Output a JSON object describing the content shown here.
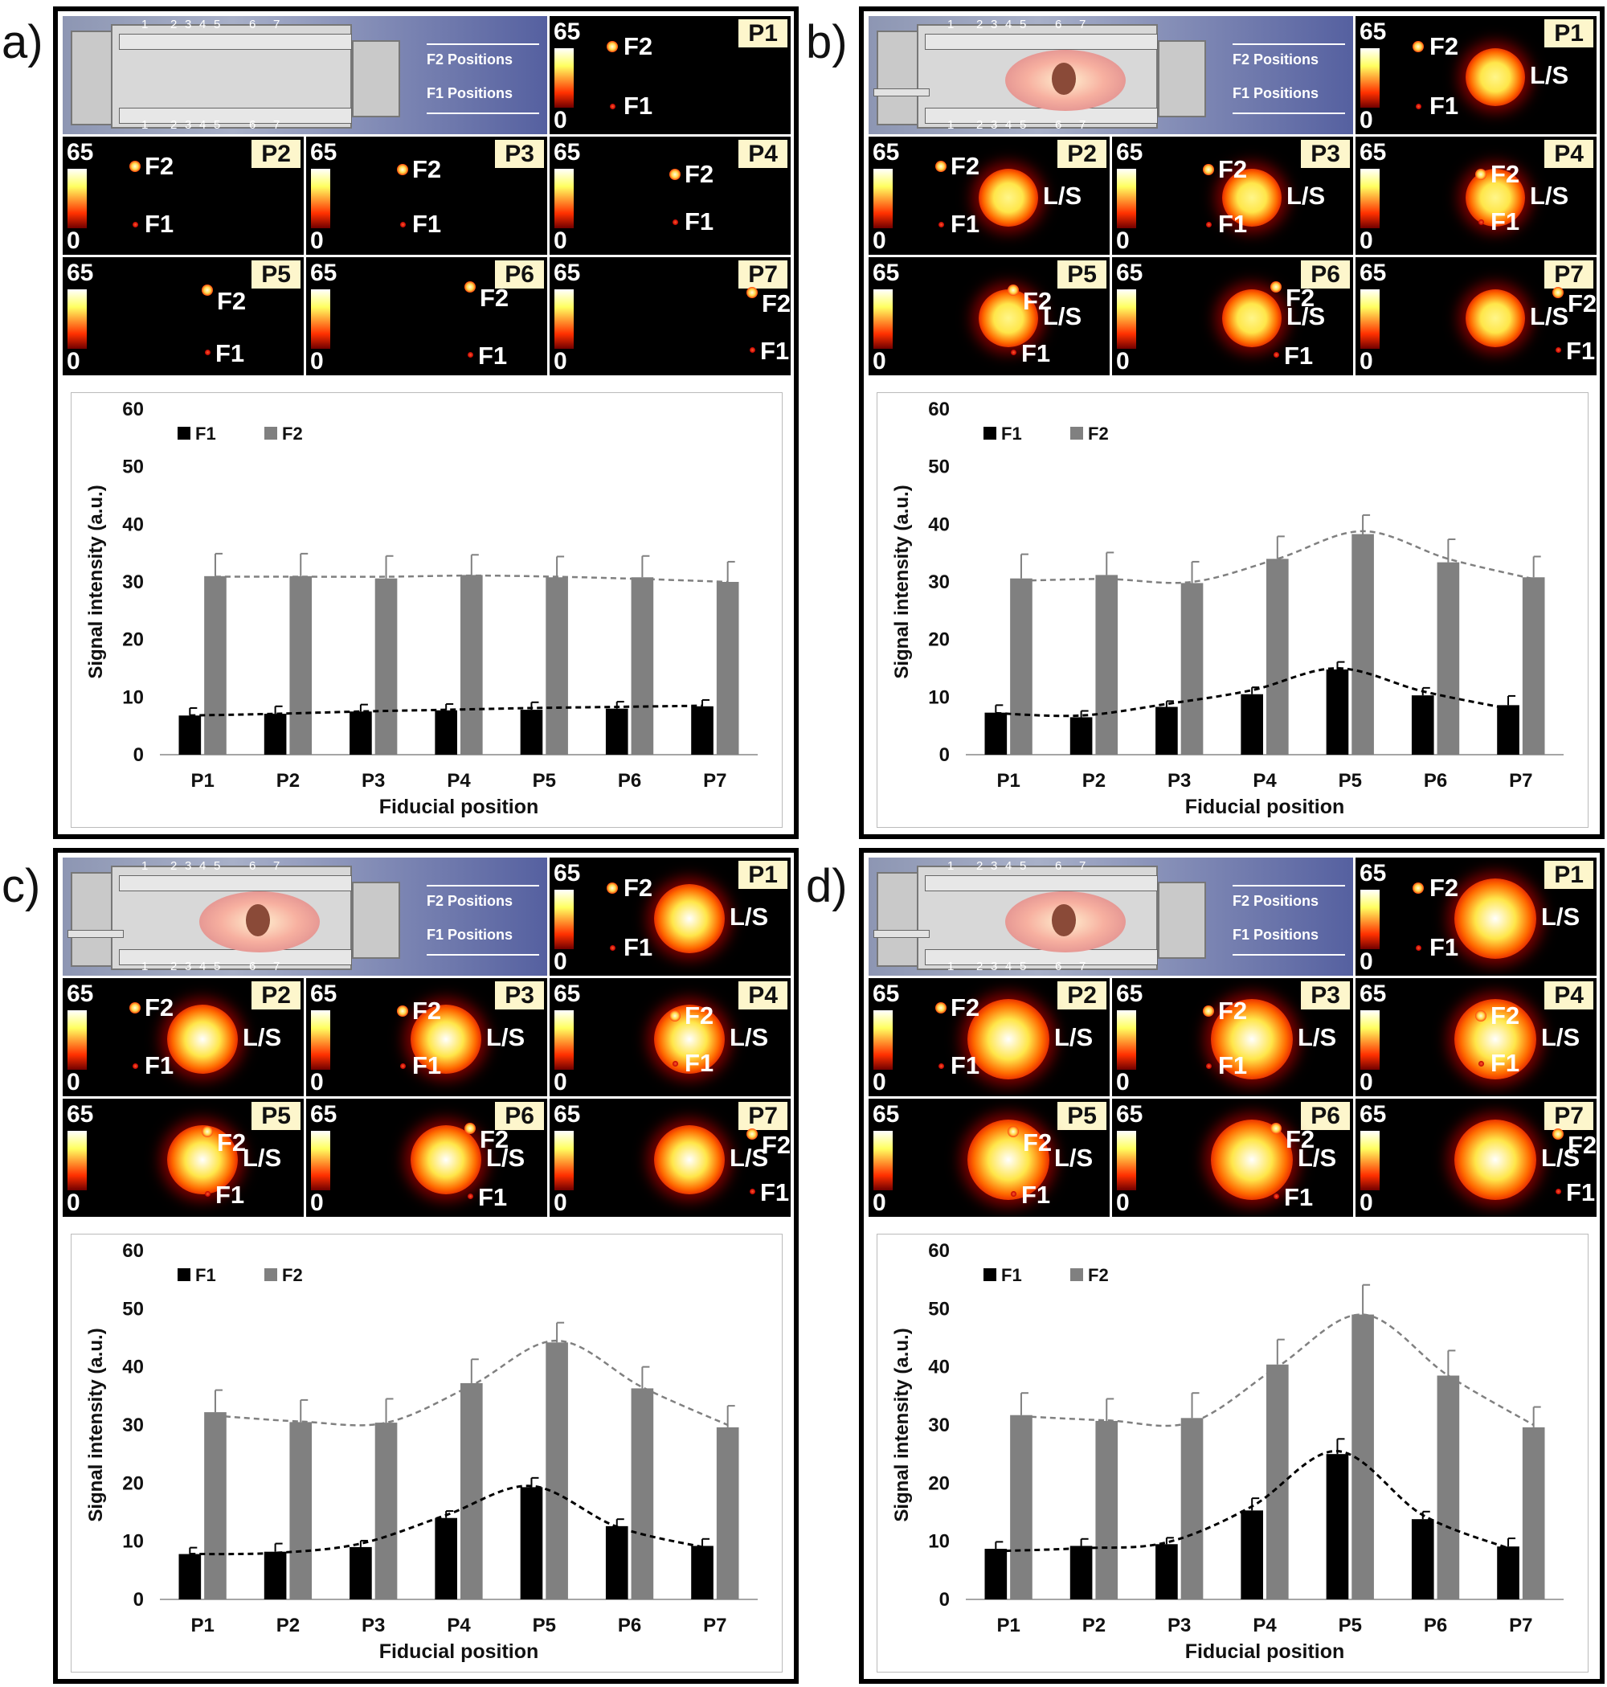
{
  "colorbar": {
    "max": "65",
    "min": "0"
  },
  "labels": {
    "f1": "F1",
    "f2": "F2",
    "ls": "L/S"
  },
  "device": {
    "f2_positions": "F2 Positions",
    "f1_positions": "F1 Positions",
    "ticks": [
      "1",
      "2",
      "3",
      "4",
      "5",
      "6",
      "7"
    ]
  },
  "positions": [
    "P1",
    "P2",
    "P3",
    "P4",
    "P5",
    "P6",
    "P7"
  ],
  "panels": [
    {
      "letter": "a)",
      "has_ls": false
    },
    {
      "letter": "b)",
      "has_ls": true
    },
    {
      "letter": "c)",
      "has_ls": true
    },
    {
      "letter": "d)",
      "has_ls": true
    }
  ],
  "chart_data": [
    {
      "type": "bar",
      "categories": [
        "P1",
        "P2",
        "P3",
        "P4",
        "P5",
        "P6",
        "P7"
      ],
      "series": [
        {
          "name": "F1",
          "color": "#000000",
          "values": [
            6.8,
            7.1,
            7.5,
            7.7,
            7.8,
            8.0,
            8.4
          ],
          "errors": [
            1.3,
            1.3,
            1.2,
            1.1,
            1.3,
            1.2,
            1.1
          ]
        },
        {
          "name": "F2",
          "color": "#808080",
          "values": [
            31,
            31,
            30.6,
            31.2,
            30.8,
            30.8,
            30
          ],
          "errors": [
            3.9,
            3.9,
            3.9,
            3.5,
            3.6,
            3.7,
            3.5
          ]
        }
      ],
      "trend": {
        "F1": [
          6.8,
          7.1,
          7.5,
          7.8,
          8.1,
          8.3,
          8.5
        ],
        "F2": [
          30.9,
          30.9,
          30.9,
          31.1,
          30.9,
          30.5,
          30.0
        ]
      },
      "title": "",
      "xlabel": "Fiducial position",
      "ylabel": "Signal intensity (a.u.)",
      "ylim": [
        0,
        60
      ],
      "yticks": [
        "0",
        "10",
        "20",
        "30",
        "40",
        "50",
        "60"
      ],
      "legend": "top-left"
    },
    {
      "type": "bar",
      "categories": [
        "P1",
        "P2",
        "P3",
        "P4",
        "P5",
        "P6",
        "P7"
      ],
      "series": [
        {
          "name": "F1",
          "color": "#000000",
          "values": [
            7.3,
            6.5,
            8.3,
            10.5,
            14.8,
            10.3,
            8.6
          ],
          "errors": [
            1.3,
            1.1,
            1.0,
            1.2,
            1.3,
            1.3,
            1.6
          ]
        },
        {
          "name": "F2",
          "color": "#808080",
          "values": [
            30.6,
            31.2,
            29.8,
            34,
            38.3,
            33.4,
            30.8
          ],
          "errors": [
            4.2,
            3.9,
            3.7,
            3.9,
            3.3,
            4.0,
            3.6
          ]
        }
      ],
      "trend": {
        "F1": [
          7.2,
          6.8,
          8.8,
          11.2,
          15.0,
          11.0,
          8.0
        ],
        "F2": [
          30.2,
          30.5,
          30.0,
          34.0,
          38.8,
          34.0,
          30.5
        ]
      },
      "title": "",
      "xlabel": "Fiducial position",
      "ylabel": "Signal intensity (a.u.)",
      "ylim": [
        0,
        60
      ],
      "yticks": [
        "0",
        "10",
        "20",
        "30",
        "40",
        "50",
        "60"
      ],
      "legend": "top-left"
    },
    {
      "type": "bar",
      "categories": [
        "P1",
        "P2",
        "P3",
        "P4",
        "P5",
        "P6",
        "P7"
      ],
      "series": [
        {
          "name": "F1",
          "color": "#000000",
          "values": [
            7.8,
            8.2,
            9.0,
            14.0,
            19.3,
            12.6,
            9.2
          ],
          "errors": [
            1.1,
            1.4,
            1.1,
            1.2,
            1.6,
            1.2,
            1.2
          ]
        },
        {
          "name": "F2",
          "color": "#808080",
          "values": [
            32.2,
            30.5,
            30.4,
            37.2,
            44.2,
            36.3,
            29.6
          ],
          "errors": [
            3.8,
            3.8,
            4.1,
            4.1,
            3.4,
            3.7,
            3.7
          ]
        }
      ],
      "trend": {
        "F1": [
          7.8,
          8.0,
          9.6,
          14.5,
          19.5,
          12.5,
          9.0
        ],
        "F2": [
          31.6,
          30.6,
          30.4,
          36.8,
          44.5,
          36.5,
          30.0
        ]
      },
      "title": "",
      "xlabel": "Fiducial position",
      "ylabel": "Signal intensity (a.u.)",
      "ylim": [
        0,
        60
      ],
      "yticks": [
        "0",
        "10",
        "20",
        "30",
        "40",
        "50",
        "60"
      ],
      "legend": "top-left"
    },
    {
      "type": "bar",
      "categories": [
        "P1",
        "P2",
        "P3",
        "P4",
        "P5",
        "P6",
        "P7"
      ],
      "series": [
        {
          "name": "F1",
          "color": "#000000",
          "values": [
            8.7,
            9.2,
            9.5,
            15.3,
            25.0,
            13.8,
            9.1
          ],
          "errors": [
            1.2,
            1.2,
            1.1,
            2.1,
            2.6,
            1.3,
            1.4
          ]
        },
        {
          "name": "F2",
          "color": "#808080",
          "values": [
            31.7,
            30.7,
            31.2,
            40.4,
            49.0,
            38.5,
            29.6
          ],
          "errors": [
            3.8,
            3.8,
            4.3,
            4.3,
            5.1,
            4.3,
            3.5
          ]
        }
      ],
      "trend": {
        "F1": [
          8.3,
          8.8,
          9.8,
          16.0,
          25.5,
          14.5,
          8.8
        ],
        "F2": [
          31.5,
          30.8,
          30.5,
          40.0,
          49.0,
          38.5,
          30.0
        ]
      },
      "title": "",
      "xlabel": "Fiducial position",
      "ylabel": "Signal intensity (a.u.)",
      "ylim": [
        0,
        60
      ],
      "yticks": [
        "0",
        "10",
        "20",
        "30",
        "40",
        "50",
        "60"
      ],
      "legend": "top-left"
    }
  ]
}
